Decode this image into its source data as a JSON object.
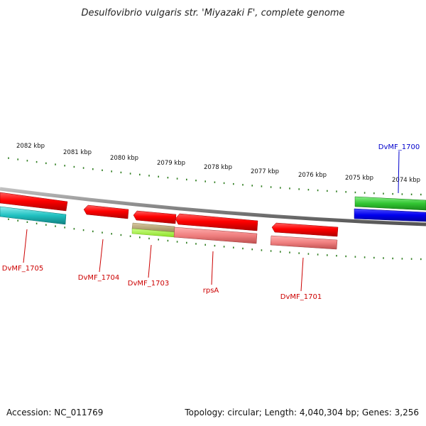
{
  "title": "Desulfovibrio vulgaris str. 'Miyazaki F', complete genome",
  "footer": {
    "accession": "Accession: NC_011769",
    "summary": "Topology: circular; Length: 4,040,304 bp; Genes: 3,256"
  },
  "colors": {
    "ticks": "#2e7d1f",
    "backbone": "#8a8a8a",
    "cds_forward": "#e00000",
    "cds_reverse": "#ff0000",
    "rna_pink": "#f08080",
    "green_gene": "#33c633",
    "blue_gene": "#0000ee",
    "cyan_gene": "#20c0c0",
    "olive_gene": "#b0a070",
    "lime_gene": "#99ee33",
    "label_red": "#cc0000",
    "label_blue": "#0000cc"
  },
  "scale": {
    "ticks": [
      {
        "label": "2082 kbp"
      },
      {
        "label": "2081 kbp"
      },
      {
        "label": "2080 kbp"
      },
      {
        "label": "2079 kbp"
      },
      {
        "label": "2078 kbp"
      },
      {
        "label": "2077 kbp"
      },
      {
        "label": "2076 kbp"
      },
      {
        "label": "2075 kbp"
      },
      {
        "label": "2074 kbp"
      }
    ]
  },
  "genes": [
    {
      "name": "DvMF_1705",
      "color": "red"
    },
    {
      "name": "DvMF_1704",
      "color": "red"
    },
    {
      "name": "DvMF_1703",
      "color": "red"
    },
    {
      "name": "rpsA",
      "color": "red"
    },
    {
      "name": "DvMF_1701",
      "color": "red"
    },
    {
      "name": "DvMF_1700",
      "color": "blue"
    }
  ]
}
